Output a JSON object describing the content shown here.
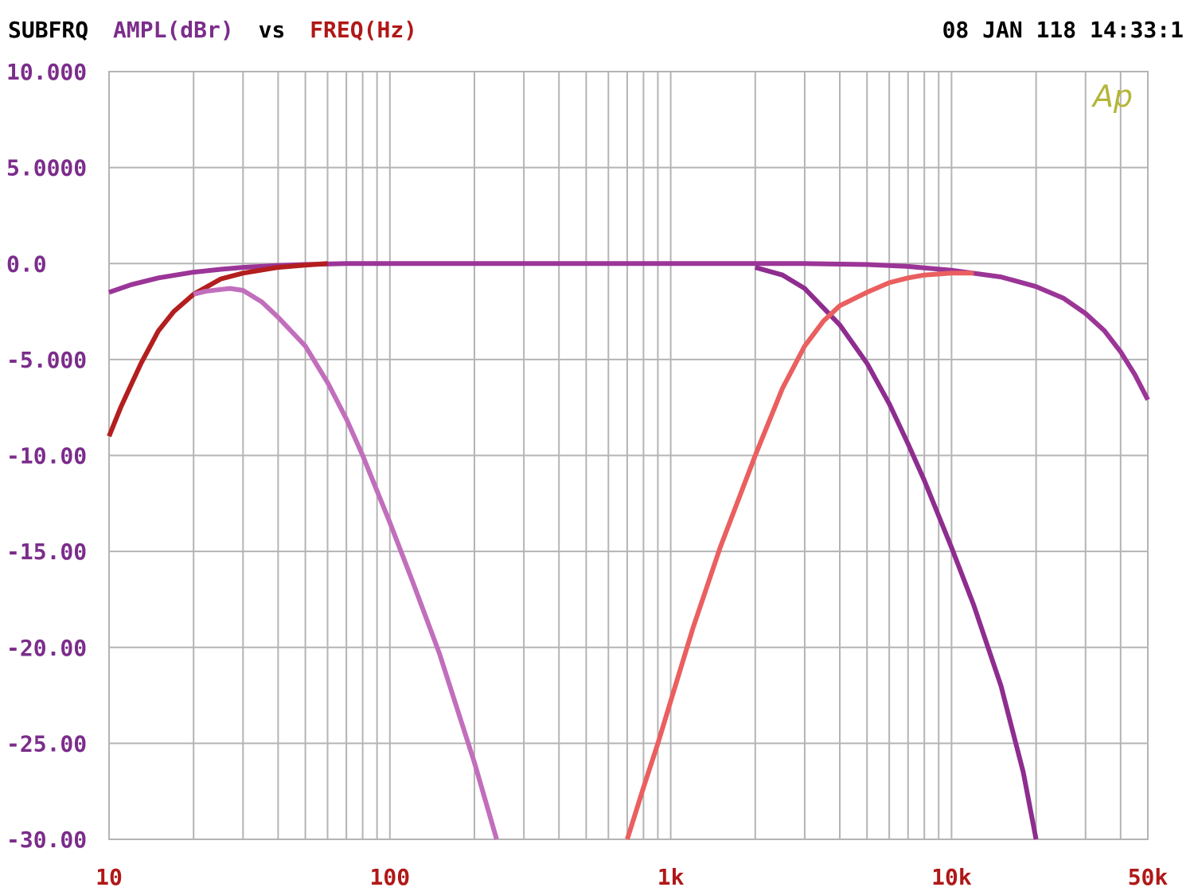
{
  "header": {
    "prefix": "SUBFRQ",
    "ylabel": "AMPL(dBr)",
    "vs": "vs",
    "xlabel": "FREQ(Hz)",
    "timestamp": "08 JAN 118 14:33:1"
  },
  "logo": "Ap",
  "colors": {
    "background": "#ffffff",
    "grid": "#b4b4b4",
    "ytick": "#7b2d8b",
    "xtick": "#b01818",
    "header_black": "#000000",
    "logo": "#b5b53a"
  },
  "chart_data": {
    "type": "line",
    "xscale": "log",
    "xlim": [
      10,
      50000
    ],
    "ylim": [
      -30,
      10
    ],
    "grid": true,
    "y_ticks": [
      {
        "value": 10,
        "label": "10.000"
      },
      {
        "value": 5,
        "label": "5.0000"
      },
      {
        "value": 0,
        "label": "0.0"
      },
      {
        "value": -5,
        "label": "-5.000"
      },
      {
        "value": -10,
        "label": "-10.00"
      },
      {
        "value": -15,
        "label": "-15.00"
      },
      {
        "value": -20,
        "label": "-20.00"
      },
      {
        "value": -25,
        "label": "-25.00"
      },
      {
        "value": -30,
        "label": "-30.00"
      }
    ],
    "x_ticks": [
      {
        "value": 10,
        "label": "10"
      },
      {
        "value": 100,
        "label": "100"
      },
      {
        "value": 1000,
        "label": "1k"
      },
      {
        "value": 10000,
        "label": "10k"
      },
      {
        "value": 50000,
        "label": "50k"
      }
    ],
    "series": [
      {
        "color": "#9b3597",
        "x": [
          10,
          12,
          15,
          20,
          25,
          30,
          40,
          50,
          70,
          100,
          300,
          1000,
          3000,
          5000,
          7000,
          10000,
          15000,
          20000,
          25000,
          30000,
          35000,
          40000,
          45000,
          50000
        ],
        "values": [
          -1.5,
          -1.1,
          -0.75,
          -0.45,
          -0.3,
          -0.2,
          -0.1,
          -0.05,
          0,
          0,
          0,
          0,
          0,
          -0.05,
          -0.15,
          -0.35,
          -0.7,
          -1.2,
          -1.8,
          -2.6,
          -3.5,
          -4.6,
          -5.8,
          -7.1
        ]
      },
      {
        "color": "#b31e1e",
        "x": [
          10,
          11,
          12,
          13,
          15,
          17,
          20,
          25,
          30,
          40,
          50,
          60
        ],
        "values": [
          -9.0,
          -7.5,
          -6.3,
          -5.2,
          -3.5,
          -2.5,
          -1.6,
          -0.8,
          -0.5,
          -0.2,
          -0.08,
          0
        ]
      },
      {
        "color": "#c16ebc",
        "x": [
          20,
          22,
          25,
          27,
          30,
          35,
          40,
          50,
          60,
          70,
          80,
          100,
          120,
          150,
          200,
          240
        ],
        "values": [
          -1.6,
          -1.45,
          -1.35,
          -1.3,
          -1.4,
          -2.0,
          -2.8,
          -4.3,
          -6.2,
          -8.1,
          -10.0,
          -13.5,
          -16.5,
          -20.3,
          -26.0,
          -30.0
        ]
      },
      {
        "color": "#8e2d8f",
        "x": [
          2000,
          2500,
          3000,
          4000,
          5000,
          6000,
          7000,
          8000,
          10000,
          12000,
          15000,
          18000,
          20000
        ],
        "values": [
          -0.2,
          -0.6,
          -1.3,
          -3.2,
          -5.2,
          -7.3,
          -9.4,
          -11.3,
          -14.8,
          -17.8,
          -22.0,
          -26.5,
          -30.0
        ]
      },
      {
        "color": "#ea5f5f",
        "x": [
          700,
          800,
          900,
          1000,
          1200,
          1500,
          2000,
          2500,
          3000,
          3500,
          4000,
          5000,
          6000,
          7000,
          8000,
          10000,
          12000
        ],
        "values": [
          -30.0,
          -27.3,
          -25.0,
          -22.8,
          -19.0,
          -14.8,
          -10.0,
          -6.5,
          -4.3,
          -3.0,
          -2.2,
          -1.5,
          -1.0,
          -0.75,
          -0.6,
          -0.5,
          -0.5
        ]
      }
    ]
  }
}
